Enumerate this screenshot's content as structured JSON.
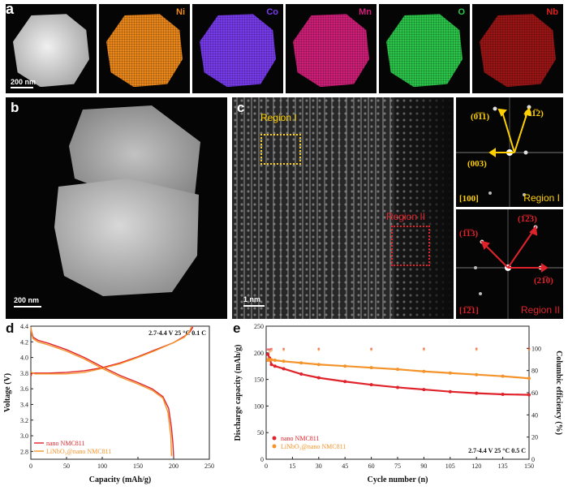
{
  "panel_a": {
    "label": "a",
    "scale_bar": "200 nm",
    "elements": [
      {
        "name": "",
        "color": "#e4e4e4"
      },
      {
        "name": "Ni",
        "color": "#f08a1c"
      },
      {
        "name": "Co",
        "color": "#7a3cf0"
      },
      {
        "name": "Mn",
        "color": "#d21f7a"
      },
      {
        "name": "O",
        "color": "#2bc84a"
      },
      {
        "name": "Nb",
        "color": "#e01f1f"
      }
    ]
  },
  "panel_b": {
    "label": "b",
    "scale_bar": "200 nm"
  },
  "panel_c": {
    "label": "c",
    "scale_bar": "1 nm",
    "region1": "Region I",
    "region2": "Region II",
    "fft1": {
      "axis": "[100]",
      "title": "Region I",
      "spots": [
        "(0̅1̅1)",
        "(01̅2)",
        "(003)"
      ]
    },
    "fft2": {
      "axis": "[1̅2̅1]",
      "title": "Region II",
      "spots": [
        "(1̅1̅3)",
        "(1̅2̅3)",
        "(21̅0)"
      ]
    }
  },
  "chart_data": [
    {
      "panel": "d",
      "type": "line",
      "title": "2.7-4.4 V 25 °C 0.1 C",
      "xlabel": "Capacity (mAh/g)",
      "ylabel": "Voltage (V)",
      "xlim": [
        0,
        250
      ],
      "ylim": [
        2.7,
        4.4
      ],
      "xticks": [
        "0",
        "50",
        "100",
        "150",
        "200",
        "250"
      ],
      "yticks": [
        "2.8",
        "3.0",
        "3.2",
        "3.4",
        "3.6",
        "3.8",
        "4.0",
        "4.2",
        "4.4"
      ],
      "legend": [
        "nano NMC811",
        "LiNbO₃@nano NMC811"
      ],
      "colors": [
        "#e0232a",
        "#f4932a"
      ],
      "series": [
        {
          "name": "nano NMC811 charge",
          "x": [
            0,
            1,
            3,
            6,
            12,
            25,
            50,
            75,
            100,
            125,
            150,
            175,
            200,
            215,
            223,
            227
          ],
          "y": [
            3.76,
            3.79,
            3.8,
            3.8,
            3.8,
            3.8,
            3.81,
            3.83,
            3.87,
            3.93,
            4.01,
            4.1,
            4.19,
            4.27,
            4.33,
            4.39
          ]
        },
        {
          "name": "nano NMC811 discharge",
          "x": [
            0,
            1,
            3,
            10,
            25,
            50,
            75,
            100,
            125,
            150,
            170,
            185,
            193,
            197,
            199,
            200
          ],
          "y": [
            4.38,
            4.33,
            4.26,
            4.22,
            4.18,
            4.1,
            4.0,
            3.88,
            3.77,
            3.68,
            3.6,
            3.5,
            3.35,
            3.1,
            2.9,
            2.73
          ]
        },
        {
          "name": "LiNbO₃@nano NMC811 charge",
          "x": [
            0,
            1,
            3,
            6,
            12,
            25,
            50,
            75,
            100,
            125,
            150,
            175,
            200,
            215,
            222,
            225
          ],
          "y": [
            3.82,
            3.81,
            3.8,
            3.79,
            3.79,
            3.79,
            3.79,
            3.81,
            3.86,
            3.92,
            4.0,
            4.09,
            4.19,
            4.26,
            4.33,
            4.39
          ]
        },
        {
          "name": "LiNbO₃@nano NMC811 discharge",
          "x": [
            0,
            1,
            3,
            10,
            25,
            50,
            75,
            100,
            125,
            150,
            170,
            185,
            192,
            196,
            197
          ],
          "y": [
            4.39,
            4.3,
            4.24,
            4.2,
            4.16,
            4.08,
            3.98,
            3.86,
            3.75,
            3.66,
            3.58,
            3.48,
            3.3,
            3.0,
            2.74
          ]
        }
      ]
    },
    {
      "panel": "e",
      "type": "scatter",
      "title": "2.7-4.4 V 25 °C 0.5 C",
      "xlabel": "Cycle number (n)",
      "ylabel": "Discharge capacity (mAh/g)",
      "y2label": "Columbic efficiency (%)",
      "xlim": [
        0,
        150
      ],
      "ylim": [
        0,
        250
      ],
      "y2lim": [
        0,
        120
      ],
      "xticks": [
        "0",
        "15",
        "30",
        "45",
        "60",
        "75",
        "90",
        "105",
        "120",
        "135",
        "150"
      ],
      "yticks": [
        "0",
        "50",
        "100",
        "150",
        "200",
        "250"
      ],
      "y2ticks": [
        "0",
        "20",
        "40",
        "60",
        "80",
        "100"
      ],
      "legend": [
        "nano NMC811",
        "LiNbO₃@nano NMC811"
      ],
      "colors": [
        "#e0232a",
        "#f4932a"
      ],
      "series": [
        {
          "name": "nano NMC811 capacity",
          "x": [
            1,
            2,
            3,
            5,
            10,
            20,
            30,
            45,
            60,
            75,
            90,
            105,
            120,
            135,
            150
          ],
          "y": [
            197,
            190,
            178,
            175,
            170,
            160,
            153,
            146,
            140,
            135,
            131,
            127,
            124,
            122,
            121
          ]
        },
        {
          "name": "LiNbO₃@nano NMC811 capacity",
          "x": [
            1,
            2,
            3,
            5,
            10,
            20,
            30,
            45,
            60,
            75,
            90,
            105,
            120,
            135,
            150
          ],
          "y": [
            186,
            187,
            187,
            186,
            184,
            181,
            178,
            175,
            172,
            169,
            165,
            162,
            159,
            156,
            152
          ]
        },
        {
          "name": "nano NMC811 efficiency",
          "axis": "y2",
          "x": [
            1,
            2,
            3,
            10,
            30,
            60,
            90,
            120,
            150
          ],
          "y": [
            99,
            99,
            99.5,
            99.5,
            99.6,
            99.6,
            99.7,
            99.7,
            99.7
          ]
        },
        {
          "name": "LiNbO₃@nano NMC811 efficiency",
          "axis": "y2",
          "x": [
            1,
            2,
            3,
            10,
            30,
            60,
            90,
            120,
            150
          ],
          "y": [
            91,
            97,
            98,
            98.5,
            98.6,
            98.6,
            98.7,
            98.7,
            98.7
          ]
        }
      ]
    }
  ]
}
